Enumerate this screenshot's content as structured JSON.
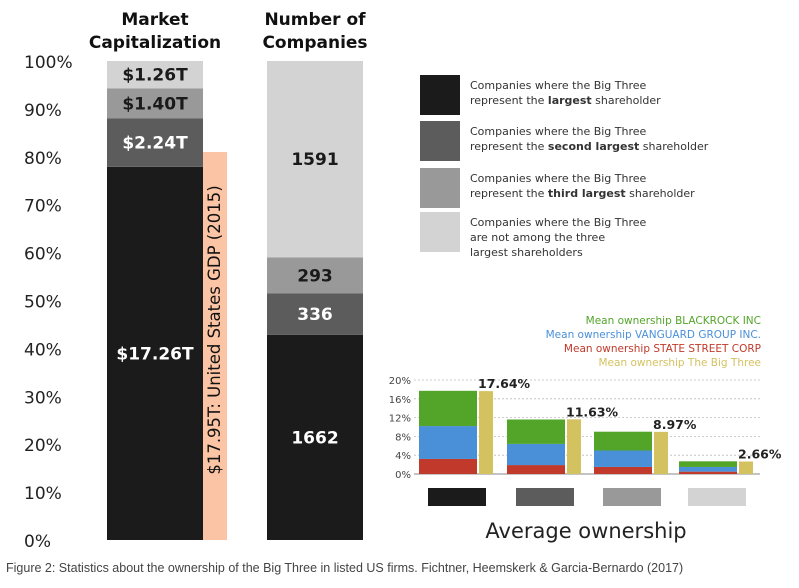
{
  "colors": {
    "largest": "#1b1b1b",
    "second": "#5c5c5c",
    "third": "#999999",
    "not_among": "#d3d3d3",
    "gdp": "#fbc4a4",
    "blackrock": "#53a52a",
    "vanguard": "#4a90d9",
    "state_street": "#c0392b",
    "big_three": "#d4c260"
  },
  "chart_data": [
    {
      "type": "bar",
      "stacked": true,
      "percent_axis": true,
      "yticks": [
        "0%",
        "10%",
        "20%",
        "30%",
        "40%",
        "50%",
        "60%",
        "70%",
        "80%",
        "90%",
        "100%"
      ],
      "ylim": [
        0,
        100
      ],
      "columns": [
        {
          "title": "Market Capitalization",
          "title_lines": [
            "Market",
            "Capitalization"
          ],
          "segments": [
            {
              "label": "$17.26T",
              "share": 77.9,
              "category": "largest"
            },
            {
              "label": "$2.24T",
              "share": 10.1,
              "category": "second"
            },
            {
              "label": "$1.40T",
              "share": 6.3,
              "category": "third"
            },
            {
              "label": "$1.26T",
              "share": 5.7,
              "category": "not_among"
            }
          ]
        },
        {
          "title": "Number of Companies",
          "title_lines": [
            "Number of",
            "Companies"
          ],
          "segments": [
            {
              "label": "1662",
              "value": 1662,
              "category": "largest"
            },
            {
              "label": "336",
              "value": 336,
              "category": "second"
            },
            {
              "label": "293",
              "value": 293,
              "category": "third"
            },
            {
              "label": "1591",
              "value": 1591,
              "category": "not_among"
            }
          ]
        }
      ],
      "reference_bar": {
        "label": "$17.95T: United States GDP (2015)",
        "share": 81.0
      },
      "legend": [
        {
          "category": "largest",
          "lines": [
            [
              "Companies where the Big Three"
            ],
            [
              "represent the ",
              "largest",
              " shareholder"
            ]
          ]
        },
        {
          "category": "second",
          "lines": [
            [
              "Companies where the Big Three"
            ],
            [
              "represent the ",
              "second largest",
              " shareholder"
            ]
          ]
        },
        {
          "category": "third",
          "lines": [
            [
              "Companies where the Big Three"
            ],
            [
              "represent the ",
              "third largest",
              " shareholder"
            ]
          ]
        },
        {
          "category": "not_among",
          "lines": [
            [
              "Companies where the Big Three"
            ],
            [
              "are not among the three"
            ],
            [
              "largest shareholders"
            ]
          ]
        }
      ]
    },
    {
      "type": "bar",
      "title": "Average ownership",
      "ylim": [
        0,
        20
      ],
      "yticks": [
        "0%",
        "4%",
        "8%",
        "12%",
        "16%",
        "20%"
      ],
      "categories": [
        "largest",
        "second",
        "third",
        "not_among"
      ],
      "legend": [
        {
          "name": "Mean ownership BLACKROCK INC",
          "color_key": "blackrock"
        },
        {
          "name": "Mean ownership VANGUARD GROUP INC.",
          "color_key": "vanguard"
        },
        {
          "name": "Mean ownership STATE STREET CORP",
          "color_key": "state_street"
        },
        {
          "name": "Mean ownership The Big Three",
          "color_key": "big_three"
        }
      ],
      "groups": [
        {
          "category": "largest",
          "state_street": 3.2,
          "vanguard": 7.0,
          "blackrock": 7.5,
          "big_three": 17.64,
          "label": "17.64%"
        },
        {
          "category": "second",
          "state_street": 1.9,
          "vanguard": 4.5,
          "blackrock": 5.2,
          "big_three": 11.63,
          "label": "11.63%"
        },
        {
          "category": "third",
          "state_street": 1.5,
          "vanguard": 3.5,
          "blackrock": 4.0,
          "big_three": 8.97,
          "label": "8.97%"
        },
        {
          "category": "not_among",
          "state_street": 0.5,
          "vanguard": 1.0,
          "blackrock": 1.2,
          "big_three": 2.66,
          "label": "2.66%"
        }
      ]
    }
  ],
  "caption": "Figure 2: Statistics about the ownership of the Big Three in listed US firms. Fichtner, Heemskerk & Garcia-Bernardo (2017)"
}
